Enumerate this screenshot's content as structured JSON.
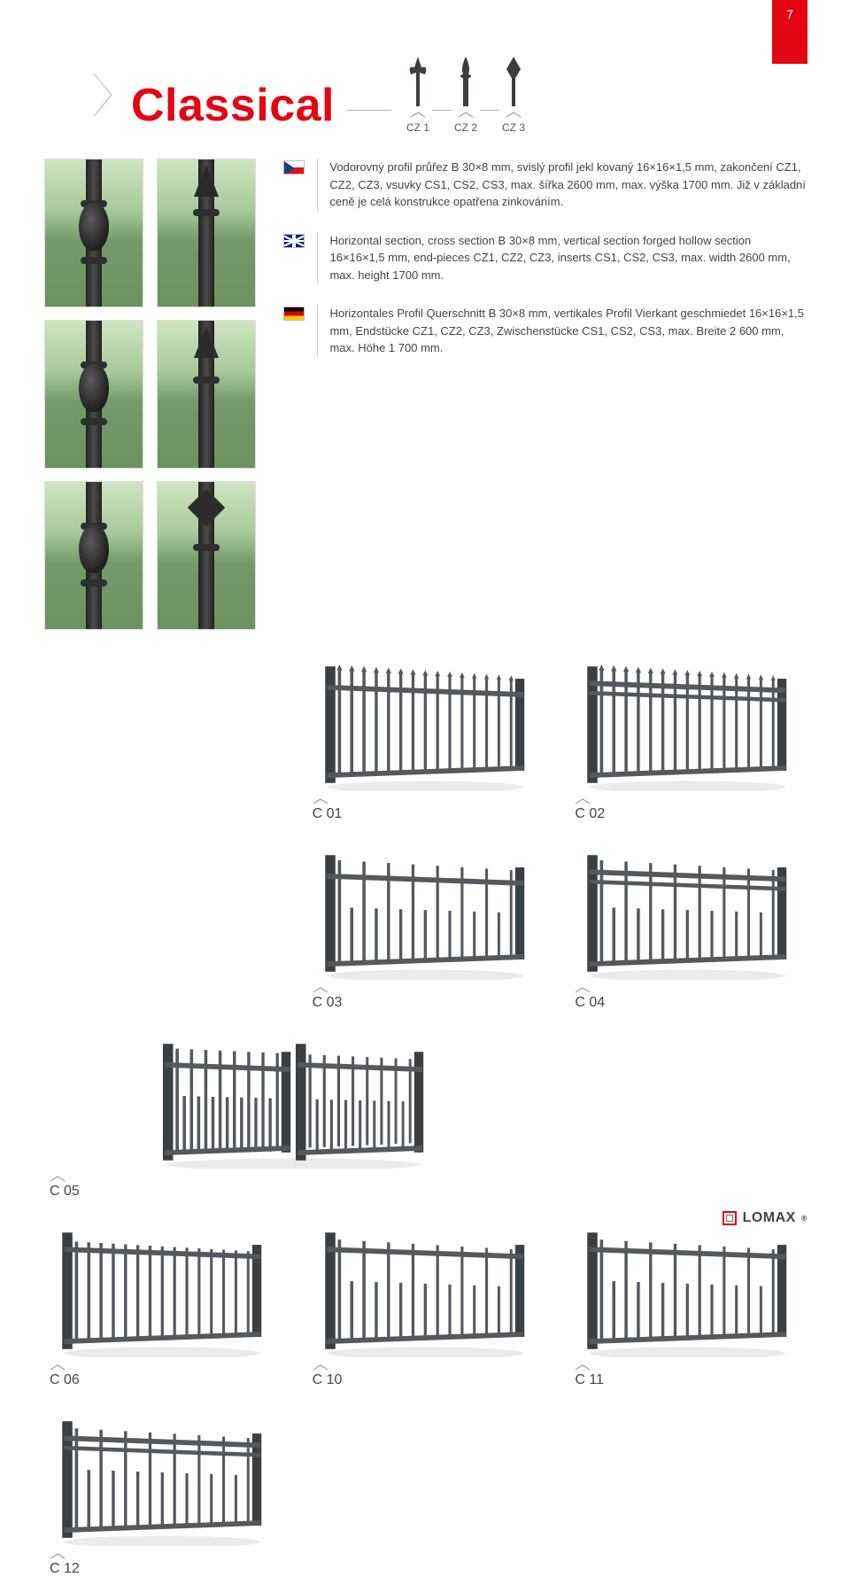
{
  "page_number": "7",
  "title": "Classical",
  "colors": {
    "accent": "#e30613",
    "text": "#3a3a3a",
    "line": "#b0b0b0",
    "fence": "#54595e",
    "fence_dark": "#3a3f44",
    "caret": "#8a8a8a"
  },
  "header_finials": [
    {
      "label": "CZ 1",
      "shape": "fleur"
    },
    {
      "label": "CZ 2",
      "shape": "spear"
    },
    {
      "label": "CZ 3",
      "shape": "diamond"
    }
  ],
  "side_samples": [
    {
      "type": "bulb"
    },
    {
      "type": "fleur-tip"
    },
    {
      "type": "bulb"
    },
    {
      "type": "spear-tip"
    },
    {
      "type": "oval"
    },
    {
      "type": "diamond-tip"
    }
  ],
  "descriptions": [
    {
      "flag": "cz",
      "text": "Vodorovný profil průřez B 30×8 mm, svislý profil jekl kovaný 16×16×1,5 mm, zakončení CZ1, CZ2, CZ3, vsuvky CS1, CS2, CS3, max. šířka 2600 mm, max. výška 1700 mm. Již v základní ceně je celá konstrukce opatřena zinkováním."
    },
    {
      "flag": "uk",
      "text": "Horizontal section, cross section B 30×8 mm, vertical section forged hollow section 16×16×1,5 mm, end-pieces CZ1, CZ2, CZ3, inserts CS1, CS2, CS3, max. width 2600 mm, max. height 1700 mm."
    },
    {
      "flag": "de",
      "text": "Horizontales Profil Querschnitt B 30×8 mm, vertikales Profil Vierkant geschmiedet 16×16×1,5 mm, Endstücke CZ1, CZ2, CZ3, Zwischenstücke CS1, CS2, CS3, max. Breite 2 600 mm, max. Höhe 1 700 mm."
    }
  ],
  "product_rows": [
    {
      "cells": [
        null,
        {
          "label": "C 01",
          "style": "pickets-top"
        },
        {
          "label": "C 02",
          "style": "pickets-top-rail"
        }
      ]
    },
    {
      "cells": [
        null,
        {
          "label": "C 03",
          "style": "stagger-low"
        },
        {
          "label": "C 04",
          "style": "stagger-low-rail"
        }
      ]
    },
    {
      "cells": [
        {
          "label": "C 05",
          "double": true,
          "style": "stagger-low"
        },
        null,
        {
          "label": "C 06",
          "style": "full-bars"
        }
      ]
    },
    {
      "cells": [
        {
          "label": "C 10",
          "style": "stagger-frame"
        },
        {
          "label": "C 11",
          "style": "stagger-frame"
        },
        {
          "label": "C 12",
          "style": "stagger-frame-rail"
        }
      ]
    }
  ],
  "footer_brand": "LOMAX"
}
